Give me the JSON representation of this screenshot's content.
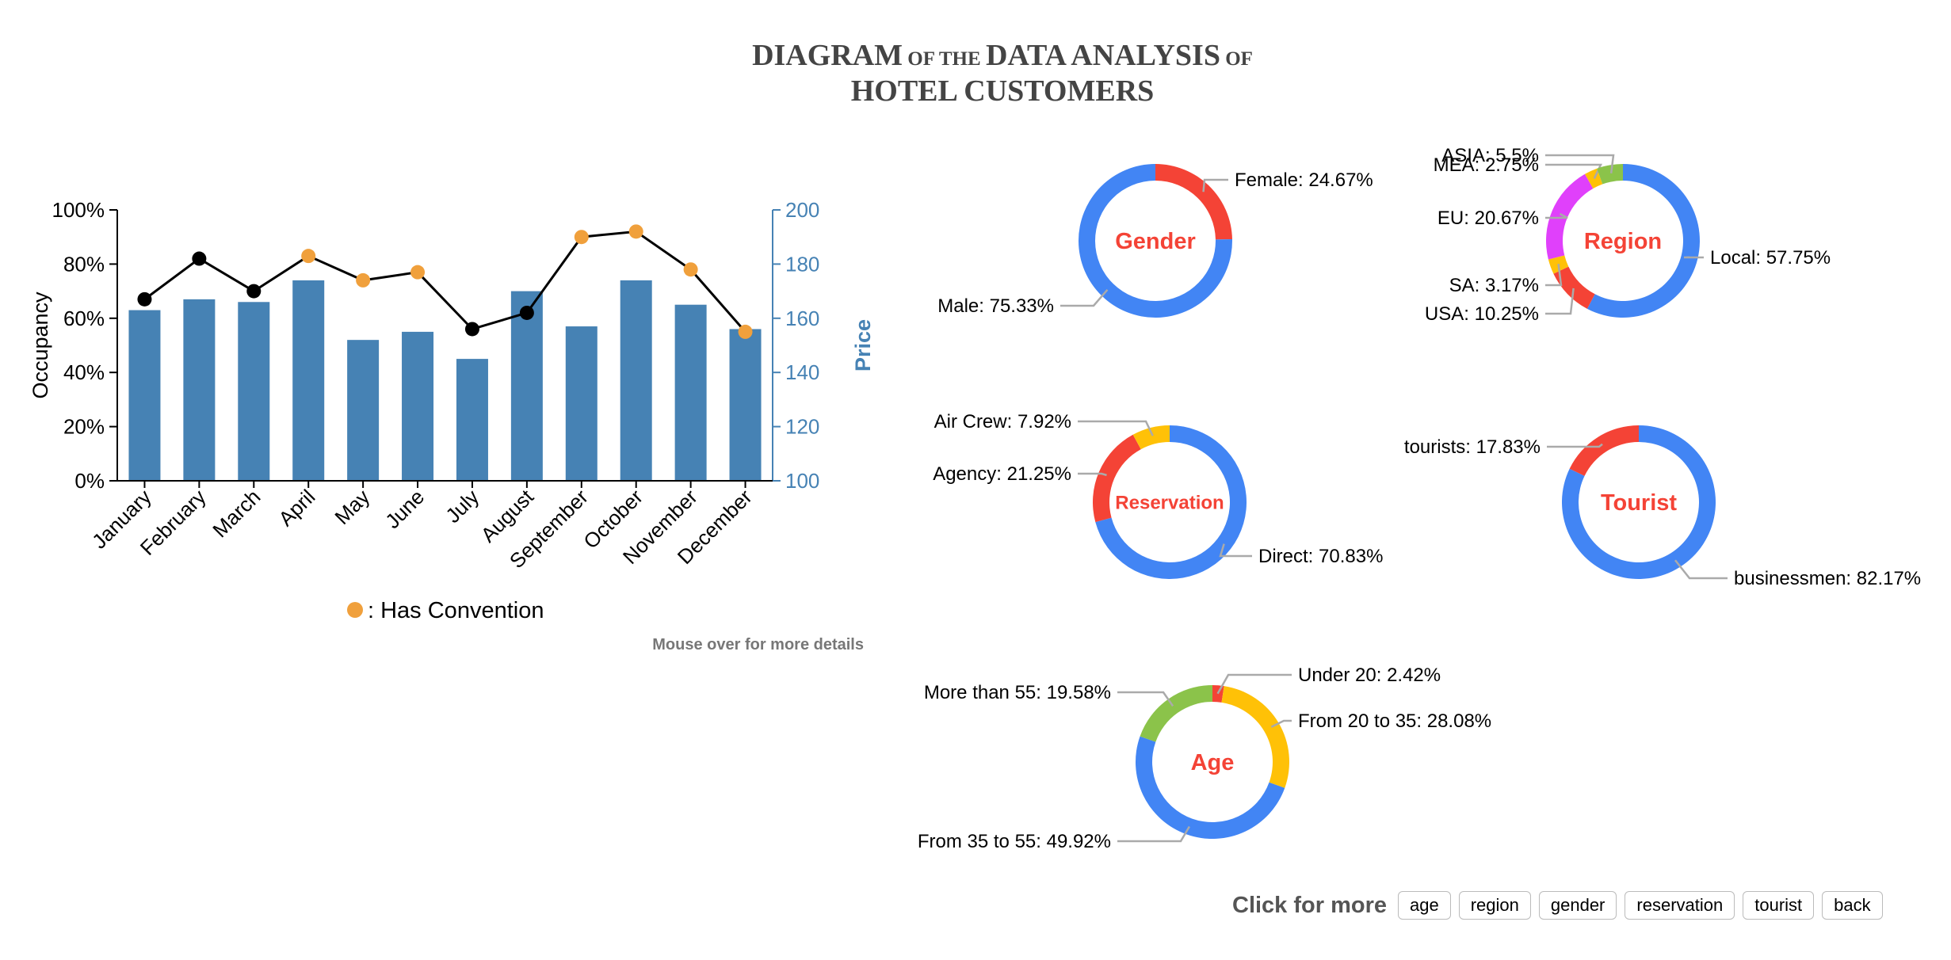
{
  "title": {
    "line1": [
      {
        "text": "DIAGRAM",
        "size": "big"
      },
      {
        "text": " OF THE ",
        "size": "small"
      },
      {
        "text": "DATA ANALYSIS",
        "size": "big"
      },
      {
        "text": " OF",
        "size": "small"
      }
    ],
    "line2": [
      {
        "text": "HOTEL CUSTOMERS",
        "size": "big"
      }
    ]
  },
  "colors": {
    "bar": "#4682b4",
    "line": "#000000",
    "convention_dot": "#f0a03c",
    "normal_dot": "#000000",
    "donut_main": "#4285f4",
    "donut_red": "#f44336",
    "donut_yellow": "#ffc107",
    "donut_green": "#8bc34a",
    "donut_magenta": "#e040fb",
    "leader": "#aaaaaa",
    "donut_title": "#f44336"
  },
  "chart_data": [
    {
      "type": "bar+line",
      "title": "",
      "categories": [
        "January",
        "February",
        "March",
        "April",
        "May",
        "June",
        "July",
        "August",
        "September",
        "October",
        "November",
        "December"
      ],
      "series": [
        {
          "name": "Occupancy",
          "kind": "bar",
          "axis": "left",
          "unit": "%",
          "values": [
            63,
            67,
            66,
            74,
            52,
            55,
            45,
            70,
            57,
            74,
            65,
            56
          ]
        },
        {
          "name": "Price",
          "kind": "line",
          "axis": "right",
          "values": [
            167,
            182,
            170,
            183,
            174,
            177,
            156,
            162,
            190,
            192,
            178,
            155
          ]
        }
      ],
      "has_convention": [
        false,
        false,
        false,
        true,
        true,
        true,
        false,
        false,
        true,
        true,
        true,
        true
      ],
      "ylabel_left": "Occupancy",
      "ylabel_right": "Price",
      "ylim_left": [
        0,
        100
      ],
      "ylim_right": [
        100,
        200
      ],
      "yticks_left": [
        "0%",
        "20%",
        "40%",
        "60%",
        "80%",
        "100%"
      ],
      "yticks_right": [
        "100",
        "120",
        "140",
        "160",
        "180",
        "200"
      ],
      "legend": ": Has Convention",
      "note": "Mouse over for more details"
    },
    {
      "type": "pie",
      "subtype": "donut",
      "title": "Gender",
      "slices": [
        {
          "label": "Female: 24.67%",
          "value": 24.67,
          "color": "#f44336"
        },
        {
          "label": "Male: 75.33%",
          "value": 75.33,
          "color": "#4285f4"
        }
      ]
    },
    {
      "type": "pie",
      "subtype": "donut",
      "title": "Region",
      "slices": [
        {
          "label": "Local: 57.75%",
          "value": 57.75,
          "color": "#4285f4"
        },
        {
          "label": "USA: 10.25%",
          "value": 10.25,
          "color": "#f44336"
        },
        {
          "label": "SA: 3.17%",
          "value": 3.17,
          "color": "#ffc107"
        },
        {
          "label": "EU: 20.67%",
          "value": 20.67,
          "color": "#e040fb"
        },
        {
          "label": "MEA: 2.75%",
          "value": 2.75,
          "color": "#ffc107"
        },
        {
          "label": "ASIA: 5.5%",
          "value": 5.5,
          "color": "#8bc34a"
        }
      ]
    },
    {
      "type": "pie",
      "subtype": "donut",
      "title": "Reservation",
      "slices": [
        {
          "label": "Direct: 70.83%",
          "value": 70.83,
          "color": "#4285f4"
        },
        {
          "label": "Agency: 21.25%",
          "value": 21.25,
          "color": "#f44336"
        },
        {
          "label": "Air Crew: 7.92%",
          "value": 7.92,
          "color": "#ffc107"
        }
      ]
    },
    {
      "type": "pie",
      "subtype": "donut",
      "title": "Tourist",
      "slices": [
        {
          "label": "businessmen: 82.17%",
          "value": 82.17,
          "color": "#4285f4"
        },
        {
          "label": "tourists: 17.83%",
          "value": 17.83,
          "color": "#f44336"
        }
      ]
    },
    {
      "type": "pie",
      "subtype": "donut",
      "title": "Age",
      "slices": [
        {
          "label": "Under 20: 2.42%",
          "value": 2.42,
          "color": "#f44336"
        },
        {
          "label": "From 20 to 35: 28.08%",
          "value": 28.08,
          "color": "#ffc107"
        },
        {
          "label": "From 35 to 55: 49.92%",
          "value": 49.92,
          "color": "#4285f4"
        },
        {
          "label": "More than 55: 19.58%",
          "value": 19.58,
          "color": "#8bc34a"
        }
      ]
    }
  ],
  "controls": {
    "label": "Click for more",
    "buttons": [
      "age",
      "region",
      "gender",
      "reservation",
      "tourist",
      "back"
    ]
  }
}
